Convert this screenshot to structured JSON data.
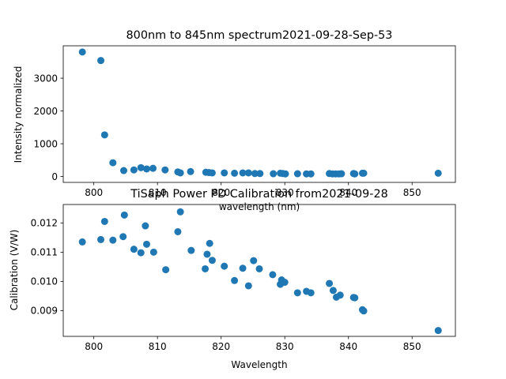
{
  "chart_data": [
    {
      "type": "scatter",
      "title": "800nm to 845nm spectrum2021-09-28-Sep-53",
      "xlabel": "wavelength (nm)",
      "ylabel": "Intensity normalized",
      "xlim": [
        795.2,
        856.8
      ],
      "ylim": [
        -180,
        3990
      ],
      "xticks": [
        800,
        810,
        820,
        830,
        840,
        850
      ],
      "yticks": [
        0,
        1000,
        2000,
        3000
      ],
      "grid": false,
      "marker_color": "#1f77b4",
      "series": [
        {
          "x": [
            798.2,
            801.1,
            801.7,
            803.0,
            804.7,
            806.3,
            807.4,
            808.3,
            809.3,
            811.2,
            813.2,
            813.6,
            815.2,
            817.6,
            818.1,
            818.6,
            820.5,
            822.1,
            823.4,
            824.3,
            825.3,
            826.1,
            828.2,
            829.3,
            829.7,
            830.1,
            832.0,
            833.4,
            834.1,
            837.0,
            837.5,
            838.0,
            838.5,
            838.9,
            840.8,
            841.0,
            842.2,
            842.4,
            854.1
          ],
          "y": [
            3800,
            3540,
            1270,
            420,
            180,
            200,
            270,
            230,
            250,
            200,
            140,
            110,
            150,
            130,
            120,
            110,
            110,
            100,
            110,
            110,
            90,
            90,
            85,
            100,
            90,
            80,
            85,
            80,
            80,
            90,
            80,
            80,
            80,
            85,
            90,
            80,
            100,
            100,
            100
          ]
        }
      ]
    },
    {
      "type": "scatter",
      "title": "TiSaph Power PD Calibration from2021-09-28",
      "xlabel": "Wavelength",
      "ylabel": "Calibration (V/W)",
      "xlim": [
        795.2,
        856.8
      ],
      "ylim": [
        0.00812,
        0.01263
      ],
      "xticks": [
        800,
        810,
        820,
        830,
        840,
        850
      ],
      "yticks": [
        0.009,
        0.01,
        0.011,
        0.012
      ],
      "ytick_labels": [
        "0.009",
        "0.010",
        "0.011",
        "0.012"
      ],
      "grid": false,
      "marker_color": "#1f77b4",
      "series": [
        {
          "x": [
            798.2,
            801.1,
            801.7,
            803.0,
            804.6,
            804.8,
            806.3,
            807.4,
            808.1,
            808.3,
            809.4,
            811.3,
            813.2,
            813.6,
            815.3,
            817.5,
            817.8,
            818.2,
            818.6,
            820.5,
            822.1,
            823.4,
            824.3,
            825.1,
            826.0,
            828.1,
            829.3,
            829.5,
            830.0,
            832.0,
            833.4,
            834.1,
            837.0,
            837.6,
            838.1,
            838.7,
            840.8,
            841.0,
            842.2,
            842.4,
            854.1
          ],
          "y": [
            0.01135,
            0.01143,
            0.01205,
            0.01141,
            0.01153,
            0.01227,
            0.0111,
            0.01098,
            0.0119,
            0.01127,
            0.011,
            0.0104,
            0.0117,
            0.01238,
            0.01106,
            0.01043,
            0.01093,
            0.0113,
            0.01072,
            0.01052,
            0.01003,
            0.01045,
            0.00985,
            0.01071,
            0.01043,
            0.01023,
            0.0099,
            0.01005,
            0.00997,
            0.00961,
            0.00966,
            0.00961,
            0.00993,
            0.00969,
            0.00946,
            0.00953,
            0.00945,
            0.00944,
            0.00903,
            0.00899,
            0.00832
          ]
        }
      ]
    }
  ]
}
